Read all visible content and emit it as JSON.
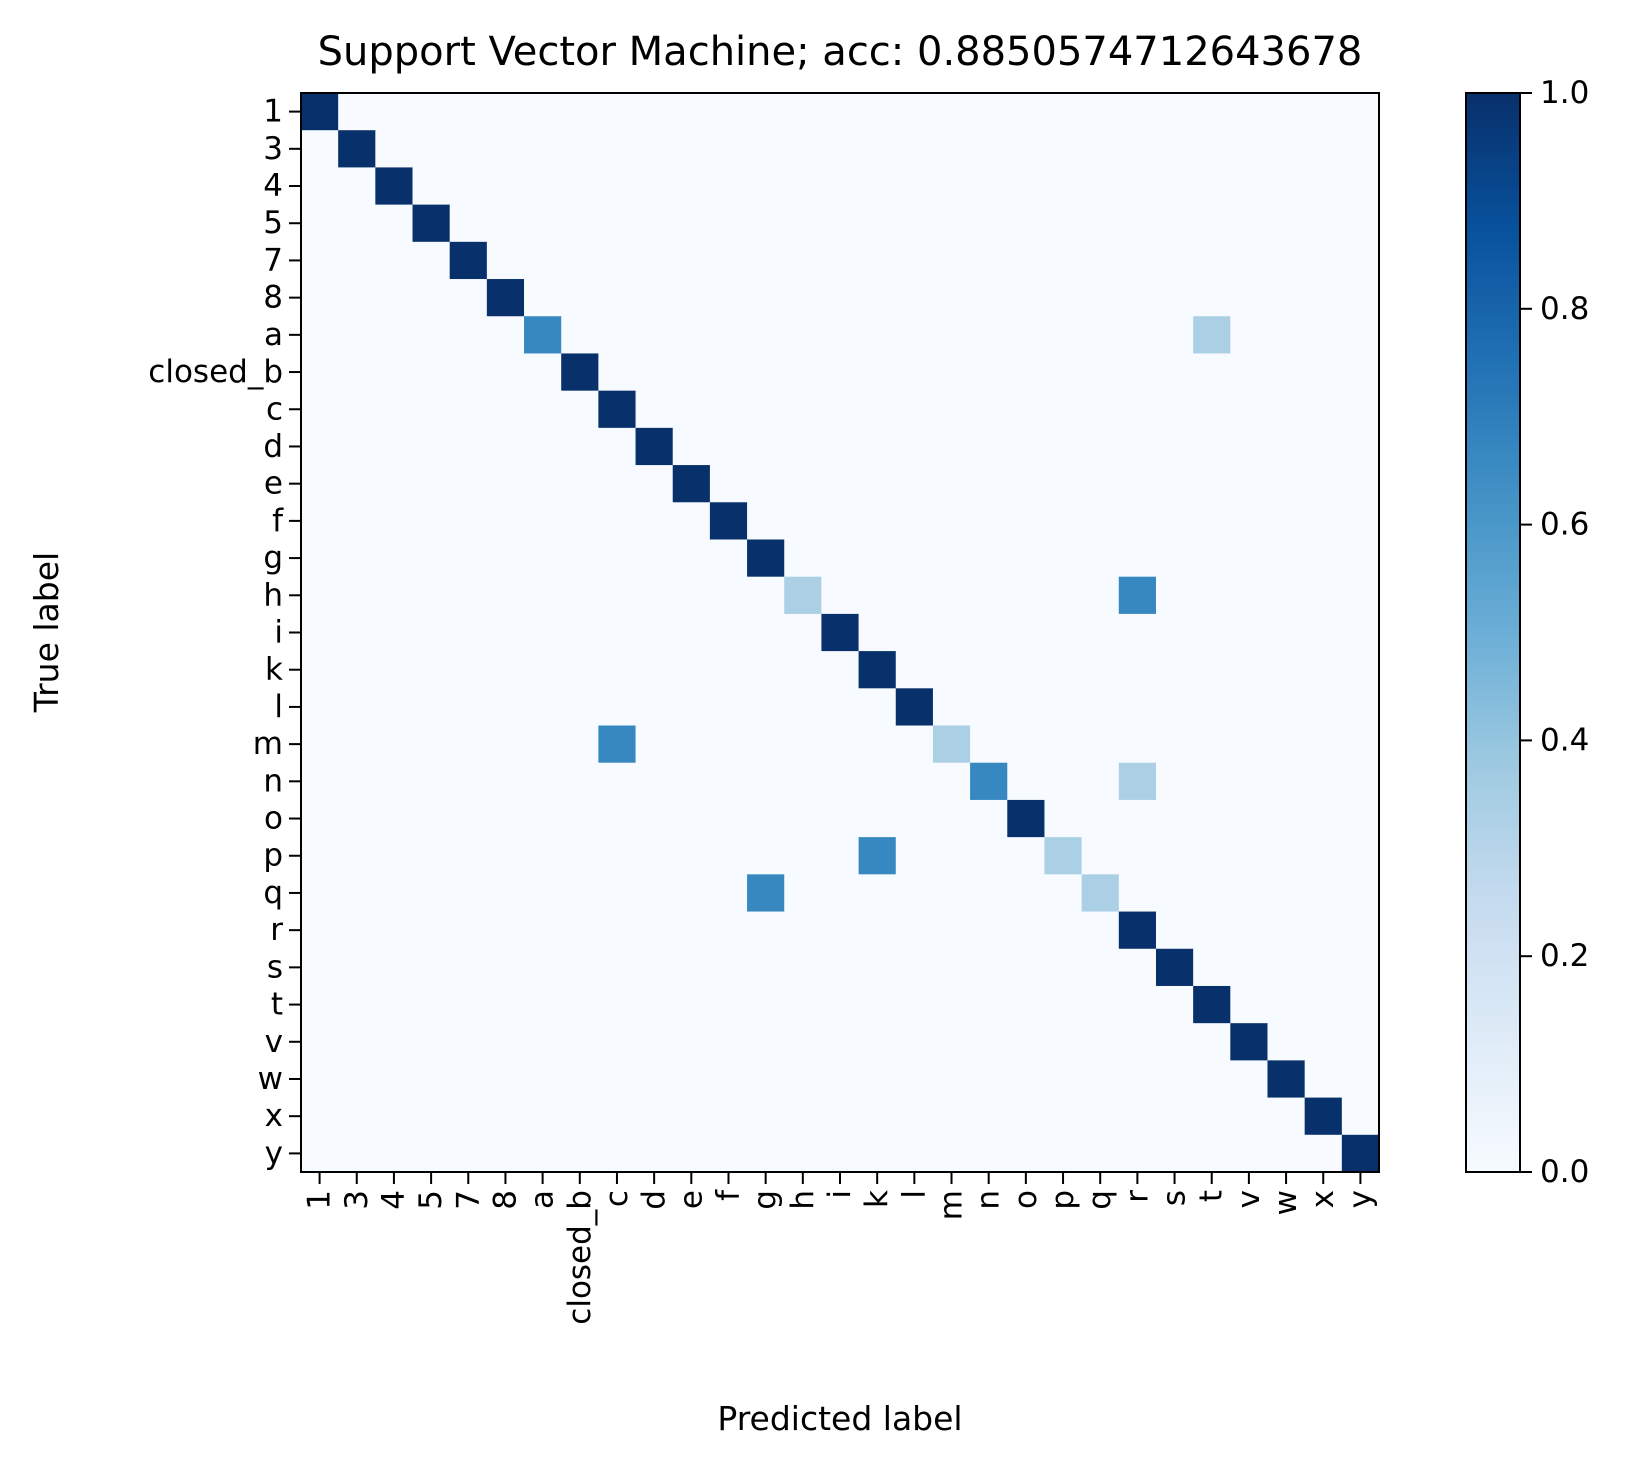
{
  "chart_data": {
    "type": "heatmap",
    "title": "Support Vector Machine; acc: 0.8850574712643678",
    "xlabel": "Predicted label",
    "ylabel": "True label",
    "labels": [
      "1",
      "3",
      "4",
      "5",
      "7",
      "8",
      "a",
      "closed_b",
      "c",
      "d",
      "e",
      "f",
      "g",
      "h",
      "i",
      "k",
      "l",
      "m",
      "n",
      "o",
      "p",
      "q",
      "r",
      "s",
      "t",
      "v",
      "w",
      "x",
      "y"
    ],
    "matrix": [
      [
        1,
        0,
        0,
        0,
        0,
        0,
        0,
        0,
        0,
        0,
        0,
        0,
        0,
        0,
        0,
        0,
        0,
        0,
        0,
        0,
        0,
        0,
        0,
        0,
        0,
        0,
        0,
        0,
        0
      ],
      [
        0,
        1,
        0,
        0,
        0,
        0,
        0,
        0,
        0,
        0,
        0,
        0,
        0,
        0,
        0,
        0,
        0,
        0,
        0,
        0,
        0,
        0,
        0,
        0,
        0,
        0,
        0,
        0,
        0
      ],
      [
        0,
        0,
        1,
        0,
        0,
        0,
        0,
        0,
        0,
        0,
        0,
        0,
        0,
        0,
        0,
        0,
        0,
        0,
        0,
        0,
        0,
        0,
        0,
        0,
        0,
        0,
        0,
        0,
        0
      ],
      [
        0,
        0,
        0,
        1,
        0,
        0,
        0,
        0,
        0,
        0,
        0,
        0,
        0,
        0,
        0,
        0,
        0,
        0,
        0,
        0,
        0,
        0,
        0,
        0,
        0,
        0,
        0,
        0,
        0
      ],
      [
        0,
        0,
        0,
        0,
        1,
        0,
        0,
        0,
        0,
        0,
        0,
        0,
        0,
        0,
        0,
        0,
        0,
        0,
        0,
        0,
        0,
        0,
        0,
        0,
        0,
        0,
        0,
        0,
        0
      ],
      [
        0,
        0,
        0,
        0,
        0,
        1,
        0,
        0,
        0,
        0,
        0,
        0,
        0,
        0,
        0,
        0,
        0,
        0,
        0,
        0,
        0,
        0,
        0,
        0,
        0,
        0,
        0,
        0,
        0
      ],
      [
        0,
        0,
        0,
        0,
        0,
        0,
        0.667,
        0,
        0,
        0,
        0,
        0,
        0,
        0,
        0,
        0,
        0,
        0,
        0,
        0,
        0,
        0,
        0,
        0,
        0.333,
        0,
        0,
        0,
        0
      ],
      [
        0,
        0,
        0,
        0,
        0,
        0,
        0,
        1,
        0,
        0,
        0,
        0,
        0,
        0,
        0,
        0,
        0,
        0,
        0,
        0,
        0,
        0,
        0,
        0,
        0,
        0,
        0,
        0,
        0
      ],
      [
        0,
        0,
        0,
        0,
        0,
        0,
        0,
        0,
        1,
        0,
        0,
        0,
        0,
        0,
        0,
        0,
        0,
        0,
        0,
        0,
        0,
        0,
        0,
        0,
        0,
        0,
        0,
        0,
        0
      ],
      [
        0,
        0,
        0,
        0,
        0,
        0,
        0,
        0,
        0,
        1,
        0,
        0,
        0,
        0,
        0,
        0,
        0,
        0,
        0,
        0,
        0,
        0,
        0,
        0,
        0,
        0,
        0,
        0,
        0
      ],
      [
        0,
        0,
        0,
        0,
        0,
        0,
        0,
        0,
        0,
        0,
        1,
        0,
        0,
        0,
        0,
        0,
        0,
        0,
        0,
        0,
        0,
        0,
        0,
        0,
        0,
        0,
        0,
        0,
        0
      ],
      [
        0,
        0,
        0,
        0,
        0,
        0,
        0,
        0,
        0,
        0,
        0,
        1,
        0,
        0,
        0,
        0,
        0,
        0,
        0,
        0,
        0,
        0,
        0,
        0,
        0,
        0,
        0,
        0,
        0
      ],
      [
        0,
        0,
        0,
        0,
        0,
        0,
        0,
        0,
        0,
        0,
        0,
        0,
        1,
        0,
        0,
        0,
        0,
        0,
        0,
        0,
        0,
        0,
        0,
        0,
        0,
        0,
        0,
        0,
        0
      ],
      [
        0,
        0,
        0,
        0,
        0,
        0,
        0,
        0,
        0,
        0,
        0,
        0,
        0,
        0.333,
        0,
        0,
        0,
        0,
        0,
        0,
        0,
        0,
        0.667,
        0,
        0,
        0,
        0,
        0,
        0
      ],
      [
        0,
        0,
        0,
        0,
        0,
        0,
        0,
        0,
        0,
        0,
        0,
        0,
        0,
        0,
        1,
        0,
        0,
        0,
        0,
        0,
        0,
        0,
        0,
        0,
        0,
        0,
        0,
        0,
        0
      ],
      [
        0,
        0,
        0,
        0,
        0,
        0,
        0,
        0,
        0,
        0,
        0,
        0,
        0,
        0,
        0,
        1,
        0,
        0,
        0,
        0,
        0,
        0,
        0,
        0,
        0,
        0,
        0,
        0,
        0
      ],
      [
        0,
        0,
        0,
        0,
        0,
        0,
        0,
        0,
        0,
        0,
        0,
        0,
        0,
        0,
        0,
        0,
        1,
        0,
        0,
        0,
        0,
        0,
        0,
        0,
        0,
        0,
        0,
        0,
        0
      ],
      [
        0,
        0,
        0,
        0,
        0,
        0,
        0,
        0,
        0.667,
        0,
        0,
        0,
        0,
        0,
        0,
        0,
        0,
        0.333,
        0,
        0,
        0,
        0,
        0,
        0,
        0,
        0,
        0,
        0,
        0
      ],
      [
        0,
        0,
        0,
        0,
        0,
        0,
        0,
        0,
        0,
        0,
        0,
        0,
        0,
        0,
        0,
        0,
        0,
        0,
        0.667,
        0,
        0,
        0,
        0.333,
        0,
        0,
        0,
        0,
        0,
        0
      ],
      [
        0,
        0,
        0,
        0,
        0,
        0,
        0,
        0,
        0,
        0,
        0,
        0,
        0,
        0,
        0,
        0,
        0,
        0,
        0,
        1,
        0,
        0,
        0,
        0,
        0,
        0,
        0,
        0,
        0
      ],
      [
        0,
        0,
        0,
        0,
        0,
        0,
        0,
        0,
        0,
        0,
        0,
        0,
        0,
        0,
        0,
        0.667,
        0,
        0,
        0,
        0,
        0.333,
        0,
        0,
        0,
        0,
        0,
        0,
        0,
        0
      ],
      [
        0,
        0,
        0,
        0,
        0,
        0,
        0,
        0,
        0,
        0,
        0,
        0,
        0.667,
        0,
        0,
        0,
        0,
        0,
        0,
        0,
        0,
        0.333,
        0,
        0,
        0,
        0,
        0,
        0,
        0
      ],
      [
        0,
        0,
        0,
        0,
        0,
        0,
        0,
        0,
        0,
        0,
        0,
        0,
        0,
        0,
        0,
        0,
        0,
        0,
        0,
        0,
        0,
        0,
        1,
        0,
        0,
        0,
        0,
        0,
        0
      ],
      [
        0,
        0,
        0,
        0,
        0,
        0,
        0,
        0,
        0,
        0,
        0,
        0,
        0,
        0,
        0,
        0,
        0,
        0,
        0,
        0,
        0,
        0,
        0,
        1,
        0,
        0,
        0,
        0,
        0
      ],
      [
        0,
        0,
        0,
        0,
        0,
        0,
        0,
        0,
        0,
        0,
        0,
        0,
        0,
        0,
        0,
        0,
        0,
        0,
        0,
        0,
        0,
        0,
        0,
        0,
        1,
        0,
        0,
        0,
        0
      ],
      [
        0,
        0,
        0,
        0,
        0,
        0,
        0,
        0,
        0,
        0,
        0,
        0,
        0,
        0,
        0,
        0,
        0,
        0,
        0,
        0,
        0,
        0,
        0,
        0,
        0,
        1,
        0,
        0,
        0
      ],
      [
        0,
        0,
        0,
        0,
        0,
        0,
        0,
        0,
        0,
        0,
        0,
        0,
        0,
        0,
        0,
        0,
        0,
        0,
        0,
        0,
        0,
        0,
        0,
        0,
        0,
        0,
        1,
        0,
        0
      ],
      [
        0,
        0,
        0,
        0,
        0,
        0,
        0,
        0,
        0,
        0,
        0,
        0,
        0,
        0,
        0,
        0,
        0,
        0,
        0,
        0,
        0,
        0,
        0,
        0,
        0,
        0,
        0,
        1,
        0
      ],
      [
        0,
        0,
        0,
        0,
        0,
        0,
        0,
        0,
        0,
        0,
        0,
        0,
        0,
        0,
        0,
        0,
        0,
        0,
        0,
        0,
        0,
        0,
        0,
        0,
        0,
        0,
        0,
        0,
        1
      ]
    ],
    "value_range": [
      0,
      1
    ],
    "colormap": "Blues",
    "colorbar": {
      "ticks": [
        0.0,
        0.2,
        0.4,
        0.6,
        0.8,
        1.0
      ],
      "tick_labels": [
        "0.0",
        "0.2",
        "0.4",
        "0.6",
        "0.8",
        "1.0"
      ]
    },
    "grid": false
  }
}
